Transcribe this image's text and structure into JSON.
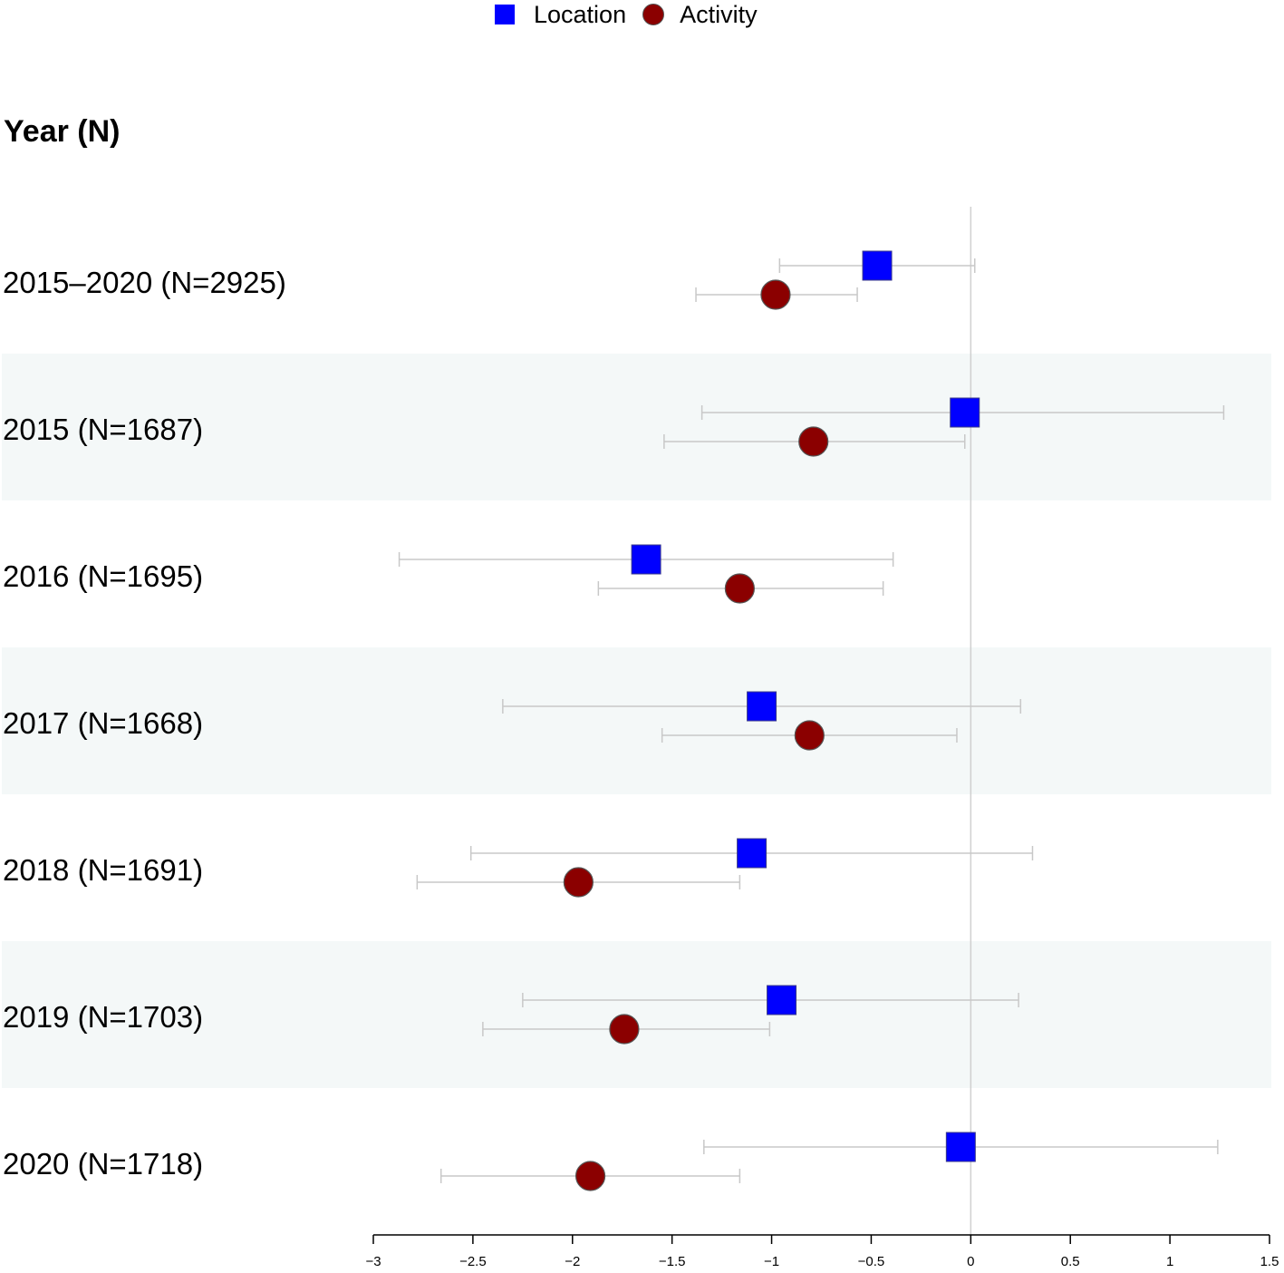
{
  "legend": {
    "location_label": "Location",
    "activity_label": "Activity"
  },
  "colors": {
    "location": "#0000ff",
    "activity": "#8b0000",
    "band": "#f4f8f8",
    "whisker": "#c8c8c8",
    "reference_line": "#d0d0d0"
  },
  "header": "Year (N)",
  "chart_data": {
    "type": "forest",
    "x_range": [
      -3,
      1.5
    ],
    "x_ticks": [
      "-3",
      "-2.5",
      "-2",
      "-1.5",
      "-1",
      "-0.5",
      "0",
      "0.5",
      "1",
      "1.5"
    ],
    "reference_line_x": 0,
    "rows": [
      {
        "label": "2015–2020 (N=2925)",
        "shaded": false,
        "location": {
          "estimate": -0.47,
          "lower": -0.96,
          "upper": 0.02
        },
        "activity": {
          "estimate": -0.98,
          "lower": -1.38,
          "upper": -0.57
        }
      },
      {
        "label": "2015 (N=1687)",
        "shaded": true,
        "location": {
          "estimate": -0.03,
          "lower": -1.35,
          "upper": 1.27
        },
        "activity": {
          "estimate": -0.79,
          "lower": -1.54,
          "upper": -0.03
        }
      },
      {
        "label": "2016 (N=1695)",
        "shaded": false,
        "location": {
          "estimate": -1.63,
          "lower": -2.87,
          "upper": -0.39
        },
        "activity": {
          "estimate": -1.16,
          "lower": -1.87,
          "upper": -0.44
        }
      },
      {
        "label": "2017 (N=1668)",
        "shaded": true,
        "location": {
          "estimate": -1.05,
          "lower": -2.35,
          "upper": 0.25
        },
        "activity": {
          "estimate": -0.81,
          "lower": -1.55,
          "upper": -0.07
        }
      },
      {
        "label": "2018 (N=1691)",
        "shaded": false,
        "location": {
          "estimate": -1.1,
          "lower": -2.51,
          "upper": 0.31
        },
        "activity": {
          "estimate": -1.97,
          "lower": -2.78,
          "upper": -1.16
        }
      },
      {
        "label": "2019 (N=1703)",
        "shaded": true,
        "location": {
          "estimate": -0.95,
          "lower": -2.25,
          "upper": 0.24
        },
        "activity": {
          "estimate": -1.74,
          "lower": -2.45,
          "upper": -1.01
        }
      },
      {
        "label": "2020 (N=1718)",
        "shaded": false,
        "location": {
          "estimate": -0.05,
          "lower": -1.34,
          "upper": 1.24
        },
        "activity": {
          "estimate": -1.91,
          "lower": -2.66,
          "upper": -1.16
        }
      }
    ]
  }
}
